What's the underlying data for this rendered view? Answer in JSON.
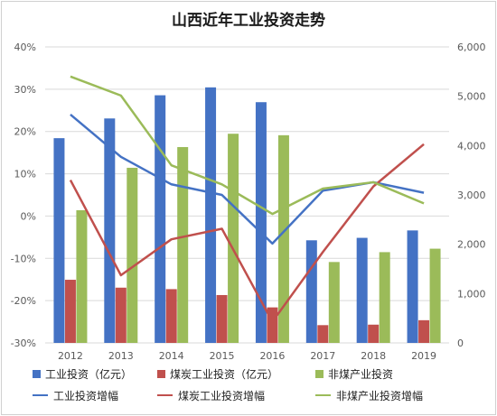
{
  "title": "山西近年工业投资走势",
  "colors": {
    "industrial": "#4472c4",
    "coal": "#c0504d",
    "noncoal": "#9bbb59",
    "grid": "#d9d9d9",
    "axis_text": "#595959"
  },
  "chart_data": {
    "type": "bar",
    "title": "山西近年工业投资走势",
    "categories": [
      "2012",
      "2013",
      "2014",
      "2015",
      "2016",
      "2017",
      "2018",
      "2019"
    ],
    "y_left": {
      "min": -30,
      "max": 40,
      "step": 10,
      "ticks": [
        "40%",
        "30%",
        "20%",
        "10%",
        "0%",
        "-10%",
        "-20%",
        "-30%"
      ]
    },
    "y_right": {
      "min": 0,
      "max": 6000,
      "step": 1000,
      "ticks": [
        "6,000",
        "5,000",
        "4,000",
        "3,000",
        "2,000",
        "1,000",
        "0"
      ]
    },
    "grid": true,
    "legend_position": "bottom",
    "bar_series": [
      {
        "name": "工业投资（亿元）",
        "color_key": "industrial",
        "axis": "right",
        "values": [
          4150,
          4550,
          5020,
          5180,
          4880,
          2080,
          2130,
          2280
        ]
      },
      {
        "name": "煤炭工业投资（亿元）",
        "color_key": "coal",
        "axis": "right",
        "values": [
          1280,
          1120,
          1090,
          970,
          720,
          360,
          370,
          460
        ]
      },
      {
        "name": "非煤产业投资",
        "color_key": "noncoal",
        "axis": "right",
        "values": [
          2690,
          3550,
          3970,
          4240,
          4210,
          1640,
          1840,
          1910
        ]
      }
    ],
    "line_series": [
      {
        "name": "工业投资增幅",
        "color_key": "industrial",
        "axis": "left",
        "values": [
          24,
          14,
          7.5,
          5,
          -6.5,
          6,
          8,
          5.5
        ]
      },
      {
        "name": "煤炭工业投资增幅",
        "color_key": "coal",
        "axis": "left",
        "values": [
          8.5,
          -14,
          -5.5,
          -3,
          -25,
          -8.5,
          7,
          17
        ]
      },
      {
        "name": "非煤产业投资增幅",
        "color_key": "noncoal",
        "axis": "left",
        "values": [
          33,
          28.5,
          12,
          7.5,
          0.5,
          6.5,
          8,
          3
        ]
      }
    ]
  },
  "legend": [
    [
      {
        "label": "工业投资（亿元）",
        "kind": "box",
        "color_key": "industrial"
      },
      {
        "label": "煤炭工业投资（亿元）",
        "kind": "box",
        "color_key": "coal"
      },
      {
        "label": "非煤产业投资",
        "kind": "box",
        "color_key": "noncoal"
      }
    ],
    [
      {
        "label": "工业投资增幅",
        "kind": "line",
        "color_key": "industrial"
      },
      {
        "label": "煤炭工业投资增幅",
        "kind": "line",
        "color_key": "coal"
      },
      {
        "label": "非煤产业投资增幅",
        "kind": "line",
        "color_key": "noncoal"
      }
    ]
  ]
}
